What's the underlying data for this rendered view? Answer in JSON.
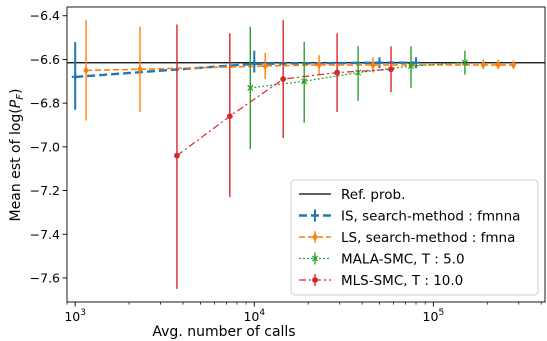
{
  "chart_data": {
    "type": "line",
    "xlabel": "Avg. number of calls",
    "ylabel": "Mean est of log(P_F)",
    "ylabel_parts": {
      "prefix": "Mean est of log(",
      "var": "P",
      "sub": "F",
      "suffix": ")"
    },
    "xscale": "log",
    "xlim": [
      900,
      420000
    ],
    "ylim": [
      -7.71,
      -6.36
    ],
    "x_ticks": [
      {
        "value": 1000,
        "base": "10",
        "exp": "3"
      },
      {
        "value": 10000,
        "base": "10",
        "exp": "4"
      },
      {
        "value": 100000,
        "base": "10",
        "exp": "5"
      }
    ],
    "y_ticks": [
      -6.4,
      -6.6,
      -6.8,
      -7.0,
      -7.2,
      -7.4,
      -7.6
    ],
    "y_tick_labels": [
      "−6.4",
      "−6.6",
      "−6.8",
      "−7.0",
      "−7.2",
      "−7.4",
      "−7.6"
    ],
    "grid": false,
    "legend": "lower-right",
    "reference": {
      "name": "Ref. prob.",
      "y": -6.615,
      "color": "#000000"
    },
    "series": [
      {
        "name": "IS, search-method : fmnna",
        "color": "#1f77b4",
        "dash": "8,4",
        "width": 2.4,
        "marker": "plus",
        "points": [
          {
            "x": 1000,
            "y": -6.68,
            "lo": -6.83,
            "hi": -6.52
          },
          {
            "x": 10000,
            "y": -6.62,
            "lo": -6.66,
            "hi": -6.56
          },
          {
            "x": 50000,
            "y": -6.615,
            "lo": -6.64,
            "hi": -6.59
          },
          {
            "x": 80000,
            "y": -6.615,
            "lo": -6.64,
            "hi": -6.59
          }
        ]
      },
      {
        "name": "LS, search-method : fmna",
        "color": "#ff7f0e",
        "dash": "6,3",
        "width": 1.6,
        "marker": "diamond",
        "points": [
          {
            "x": 1150,
            "y": -6.65,
            "lo": -6.88,
            "hi": -6.42
          },
          {
            "x": 2300,
            "y": -6.645,
            "lo": -6.84,
            "hi": -6.45
          },
          {
            "x": 11500,
            "y": -6.63,
            "lo": -6.69,
            "hi": -6.57
          },
          {
            "x": 23000,
            "y": -6.625,
            "lo": -6.67,
            "hi": -6.58
          },
          {
            "x": 46000,
            "y": -6.625,
            "lo": -6.66,
            "hi": -6.59
          },
          {
            "x": 190000,
            "y": -6.625,
            "lo": -6.645,
            "hi": -6.6
          },
          {
            "x": 230000,
            "y": -6.625,
            "lo": -6.645,
            "hi": -6.6
          },
          {
            "x": 280000,
            "y": -6.625,
            "lo": -6.645,
            "hi": -6.605
          }
        ]
      },
      {
        "name": "MALA-SMC, T : 5.0",
        "color": "#2ca02c",
        "dash": "2,2",
        "width": 1.2,
        "marker": "x",
        "points": [
          {
            "x": 9500,
            "y": -6.73,
            "lo": -7.01,
            "hi": -6.45
          },
          {
            "x": 19000,
            "y": -6.7,
            "lo": -6.89,
            "hi": -6.52
          },
          {
            "x": 38000,
            "y": -6.66,
            "lo": -6.79,
            "hi": -6.54
          },
          {
            "x": 75000,
            "y": -6.63,
            "lo": -6.73,
            "hi": -6.54
          },
          {
            "x": 150000,
            "y": -6.615,
            "lo": -6.67,
            "hi": -6.56
          }
        ]
      },
      {
        "name": "MLS-SMC, T : 10.0",
        "color": "#d62728",
        "dash": "7,3,2,3",
        "width": 1.2,
        "marker": "circle",
        "points": [
          {
            "x": 3700,
            "y": -7.04,
            "lo": -7.65,
            "hi": -6.44
          },
          {
            "x": 7300,
            "y": -6.86,
            "lo": -7.23,
            "hi": -6.48
          },
          {
            "x": 14500,
            "y": -6.69,
            "lo": -6.96,
            "hi": -6.42
          },
          {
            "x": 29000,
            "y": -6.66,
            "lo": -6.84,
            "hi": -6.48
          },
          {
            "x": 58000,
            "y": -6.645,
            "lo": -6.75,
            "hi": -6.54
          }
        ]
      }
    ]
  }
}
